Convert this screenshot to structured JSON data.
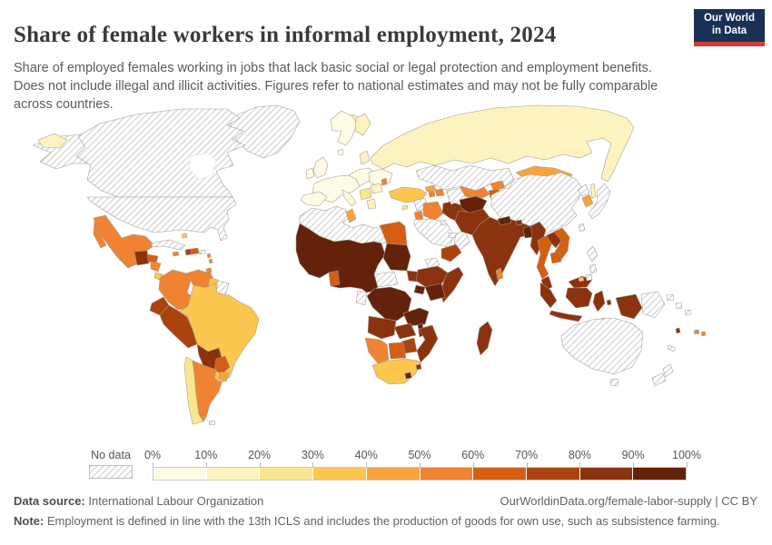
{
  "header": {
    "title": "Share of female workers in informal employment, 2024",
    "subtitle": "Share of employed females working in jobs that lack basic social or legal protection and employment benefits. Does not include illegal and illicit activities. Figures refer to national estimates and may not be fully comparable across countries.",
    "logo_line1": "Our World",
    "logo_line2": "in Data",
    "logo_bg_color": "#1a3157",
    "logo_accent_color": "#d73c32"
  },
  "legend": {
    "no_data_label": "No data",
    "tick_labels": [
      "0%",
      "10%",
      "20%",
      "30%",
      "40%",
      "50%",
      "60%",
      "70%",
      "80%",
      "90%",
      "100%"
    ],
    "bin_labels": [
      "0-10%",
      "10-20%",
      "20-30%",
      "30-40%",
      "40-50%",
      "50-60%",
      "60-70%",
      "70-80%",
      "80-90%",
      "90-100%"
    ],
    "bin_colors": [
      "#fdfbe4",
      "#fcf3c0",
      "#fbe58e",
      "#fbc74f",
      "#f9a33c",
      "#ef8332",
      "#d55e13",
      "#ab430e",
      "#8b330e",
      "#65220a"
    ],
    "no_data_pattern": "diagonal-hatch"
  },
  "footer": {
    "source_label": "Data source:",
    "source_value": " International Labour Organization",
    "link_text": "OurWorldinData.org/female-labor-supply | CC BY",
    "note_label": "Note:",
    "note_text": " Employment is defined in line with the 13th ICLS and includes the production of goods for own use, such as subsistence farming."
  },
  "chart_data": {
    "type": "choropleth_map",
    "title": "Share of female workers in informal employment, 2024",
    "unit": "% of employed females in informal employment",
    "year": 2024,
    "bins_meaning": "0 = no data; 1..10 = color bins 0-10% .. 90-100%",
    "regions": {
      "greenland": 0,
      "canada": 0,
      "alaska": 0,
      "usa": 0,
      "cuba": 0,
      "puerto-rico": 0,
      "guianas": 0,
      "falklands": 0,
      "north-africa": 0,
      "central-african-republic": 0,
      "gabon-congo": 0,
      "eritrea": 0,
      "syria": 0,
      "saudi-arabia": 0,
      "oman": 0,
      "uae-qatar": 0,
      "kuwait": 0,
      "kazakhstan": 0,
      "turkmenistan": 0,
      "china": 0,
      "north-korea": 0,
      "japan": 0,
      "taiwan": 0,
      "philippines": 0,
      "papua-new-guinea": 0,
      "solomon-islands": 0,
      "new-caledonia": 0,
      "australia": 0,
      "tasmania": 0,
      "new-zealand-north": 0,
      "new-zealand-south": 0,
      "western-europe": 1,
      "uk": 1,
      "ireland": 1,
      "iberia": 1,
      "italy": 1,
      "scandinavia": 1,
      "denmark": 1,
      "central-europe": 1,
      "ukraine": 1,
      "iceland": 2,
      "finland": 2,
      "baltics": 2,
      "romania": 2,
      "greece": 2,
      "russia": 2,
      "sakhalin": 2,
      "chukotka-wrap": 2,
      "chile": 3,
      "balkans": 3,
      "cyprus": 3,
      "brazil": 4,
      "guyana": 4,
      "south-africa": 4,
      "costa-rica": 4,
      "turkey": 4,
      "bahamas": 4,
      "brunei": 4,
      "uruguay": 5,
      "mongolia": 5,
      "south-korea": 5,
      "tunisia": 5,
      "georgia": 5,
      "mexico": 6,
      "nicaragua": 6,
      "panama": 6,
      "jamaica": 6,
      "colombia": 6,
      "venezuela": 6,
      "argentina": 6,
      "moldova": 6,
      "armenia": 6,
      "azerbaijan": 6,
      "jordan": 6,
      "iraq": 6,
      "uzbekistan": 6,
      "kyrgyzstan": 6,
      "sri-lanka": 6,
      "namibia": 6,
      "fiji": 6,
      "trinidad": 6,
      "lesser-antilles": 6,
      "honduras": 7,
      "dominican-republic": 7,
      "paraguay": 7,
      "egypt": 7,
      "tajikistan": 7,
      "thailand": 7,
      "vietnam": 7,
      "cambodia": 7,
      "botswana": 7,
      "ghana": 7,
      "djibouti": 7,
      "haiti": 8,
      "ecuador": 8,
      "peru": 8,
      "yemen": 8,
      "zimbabwe": 8,
      "guatemala": 9,
      "bolivia": 9,
      "iran": 9,
      "pakistan": 9,
      "india": 9,
      "myanmar": 9,
      "laos": 9,
      "malaysia-peninsula": 9,
      "malaysia-borneo": 9,
      "sumatra": 9,
      "java": 9,
      "kalimantan": 9,
      "sulawesi": 9,
      "indonesia-papua": 9,
      "moluccas": 9,
      "timor": 9,
      "somalia": 9,
      "ethiopia": 9,
      "south-sudan": 9,
      "angola": 9,
      "zambia": 9,
      "mozambique": 9,
      "madagascar": 9,
      "eswatini": 9,
      "vanuatu": 9,
      "bhutan": 9,
      "afghanistan": 10,
      "nepal": 10,
      "bangladesh": 10,
      "west-africa": 10,
      "sudan": 10,
      "drc": 10,
      "uganda": 10,
      "kenya": 10,
      "tanzania": 10,
      "malawi": 10,
      "lesotho": 10
    }
  }
}
